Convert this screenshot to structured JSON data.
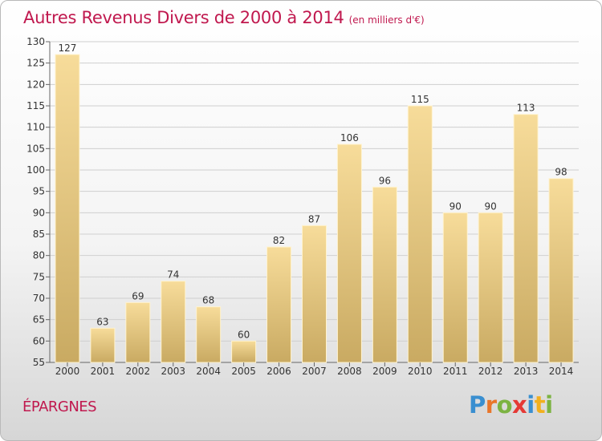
{
  "chart_data": {
    "type": "bar",
    "title": "Autres Revenus Divers de 2000 à 2014",
    "unit_note": "(en milliers d'€)",
    "categories": [
      "2000",
      "2001",
      "2002",
      "2003",
      "2004",
      "2005",
      "2006",
      "2007",
      "2008",
      "2009",
      "2010",
      "2011",
      "2012",
      "2013",
      "2014"
    ],
    "values": [
      127,
      63,
      69,
      74,
      68,
      60,
      82,
      87,
      106,
      96,
      115,
      90,
      90,
      113,
      98
    ],
    "ylim": [
      55,
      130
    ],
    "yticks": [
      55,
      60,
      65,
      70,
      75,
      80,
      85,
      90,
      95,
      100,
      105,
      110,
      115,
      120,
      125,
      130
    ],
    "xlabel": "",
    "ylabel": "",
    "grid": true,
    "bar_color_top": "#f7dc9a",
    "bar_color_bottom": "#c9aa62"
  },
  "footer": {
    "commune": "ÉPARGNES",
    "logo_letters": [
      "P",
      "r",
      "o",
      "x",
      "i",
      "t",
      "i"
    ],
    "logo_colors": [
      "#3a8fd0",
      "#e9762a",
      "#7cb342",
      "#e53935",
      "#3a8fd0",
      "#f2b01e",
      "#7cb342"
    ]
  },
  "colors": {
    "title": "#c0184e",
    "grid": "#cfcfcf",
    "background": "#f4f4f4"
  }
}
